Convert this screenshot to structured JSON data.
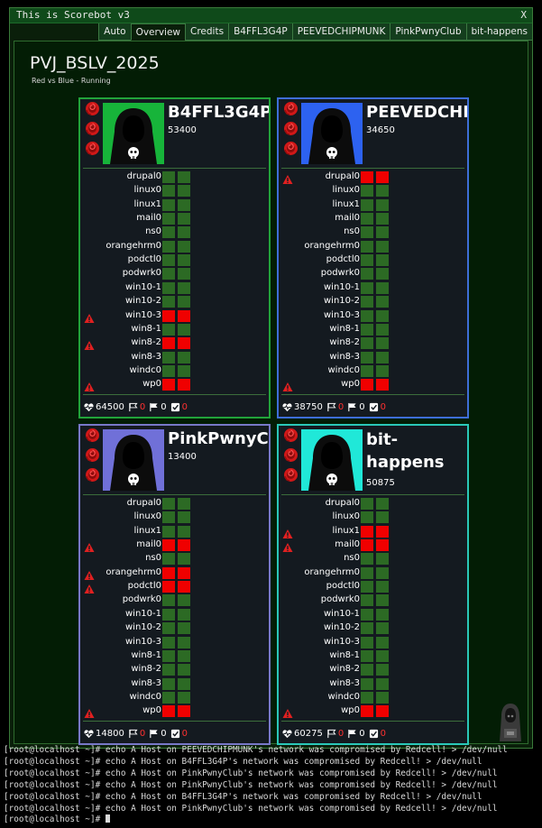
{
  "window": {
    "title": "This is Scorebot v3",
    "close_label": "X",
    "tabs": [
      {
        "label": "Auto",
        "active": false
      },
      {
        "label": "Overview",
        "active": true
      },
      {
        "label": "Credits",
        "active": false
      },
      {
        "label": "B4FFL3G4P",
        "active": false
      },
      {
        "label": "PEEVEDCHIPMUNK",
        "active": false
      },
      {
        "label": "PinkPwnyClub",
        "active": false
      },
      {
        "label": "bit-happens",
        "active": false
      }
    ]
  },
  "game": {
    "title": "PVJ_BSLV_2025",
    "subtitle": "Red vs Blue - Running"
  },
  "teams": [
    {
      "name": "B4FFL3G4P",
      "score": "53400",
      "color": "#22a33a",
      "logo_bg": "#17b43a",
      "wrap": false,
      "services": [
        {
          "name": "drupal0",
          "status": [
            "up",
            "up"
          ]
        },
        {
          "name": "linux0",
          "status": [
            "up",
            "up"
          ]
        },
        {
          "name": "linux1",
          "status": [
            "up",
            "up"
          ]
        },
        {
          "name": "mail0",
          "status": [
            "up",
            "up"
          ]
        },
        {
          "name": "ns0",
          "status": [
            "up",
            "up"
          ]
        },
        {
          "name": "orangehrm0",
          "status": [
            "up",
            "up"
          ]
        },
        {
          "name": "podctl0",
          "status": [
            "up",
            "up"
          ]
        },
        {
          "name": "podwrk0",
          "status": [
            "up",
            "up"
          ]
        },
        {
          "name": "win10-1",
          "status": [
            "up",
            "up"
          ]
        },
        {
          "name": "win10-2",
          "status": [
            "up",
            "up"
          ]
        },
        {
          "name": "win10-3",
          "status": [
            "down",
            "down"
          ]
        },
        {
          "name": "win8-1",
          "status": [
            "up",
            "up"
          ]
        },
        {
          "name": "win8-2",
          "status": [
            "down",
            "down"
          ]
        },
        {
          "name": "win8-3",
          "status": [
            "up",
            "up"
          ]
        },
        {
          "name": "windc0",
          "status": [
            "up",
            "up"
          ]
        },
        {
          "name": "wp0",
          "status": [
            "down",
            "down"
          ]
        }
      ],
      "health": "64500",
      "tickets": "0",
      "flags": "0",
      "beacons": "0"
    },
    {
      "name": "PEEVEDCHIPMUNK",
      "score": "34650",
      "color": "#3e6ed8",
      "logo_bg": "#2d62f0",
      "wrap": false,
      "services": [
        {
          "name": "drupal0",
          "status": [
            "down",
            "down"
          ]
        },
        {
          "name": "linux0",
          "status": [
            "up",
            "up"
          ]
        },
        {
          "name": "linux1",
          "status": [
            "up",
            "up"
          ]
        },
        {
          "name": "mail0",
          "status": [
            "up",
            "up"
          ]
        },
        {
          "name": "ns0",
          "status": [
            "up",
            "up"
          ]
        },
        {
          "name": "orangehrm0",
          "status": [
            "up",
            "up"
          ]
        },
        {
          "name": "podctl0",
          "status": [
            "up",
            "up"
          ]
        },
        {
          "name": "podwrk0",
          "status": [
            "up",
            "up"
          ]
        },
        {
          "name": "win10-1",
          "status": [
            "up",
            "up"
          ]
        },
        {
          "name": "win10-2",
          "status": [
            "up",
            "up"
          ]
        },
        {
          "name": "win10-3",
          "status": [
            "up",
            "up"
          ]
        },
        {
          "name": "win8-1",
          "status": [
            "up",
            "up"
          ]
        },
        {
          "name": "win8-2",
          "status": [
            "up",
            "up"
          ]
        },
        {
          "name": "win8-3",
          "status": [
            "up",
            "up"
          ]
        },
        {
          "name": "windc0",
          "status": [
            "up",
            "up"
          ]
        },
        {
          "name": "wp0",
          "status": [
            "down",
            "down"
          ]
        }
      ],
      "health": "38750",
      "tickets": "0",
      "flags": "0",
      "beacons": "0"
    },
    {
      "name": "PinkPwnyClub",
      "score": "13400",
      "color": "#7878c8",
      "logo_bg": "#7070d8",
      "wrap": false,
      "services": [
        {
          "name": "drupal0",
          "status": [
            "up",
            "up"
          ]
        },
        {
          "name": "linux0",
          "status": [
            "up",
            "up"
          ]
        },
        {
          "name": "linux1",
          "status": [
            "up",
            "up"
          ]
        },
        {
          "name": "mail0",
          "status": [
            "down",
            "down"
          ]
        },
        {
          "name": "ns0",
          "status": [
            "up",
            "up"
          ]
        },
        {
          "name": "orangehrm0",
          "status": [
            "down",
            "down"
          ]
        },
        {
          "name": "podctl0",
          "status": [
            "down",
            "down"
          ]
        },
        {
          "name": "podwrk0",
          "status": [
            "up",
            "up"
          ]
        },
        {
          "name": "win10-1",
          "status": [
            "up",
            "up"
          ]
        },
        {
          "name": "win10-2",
          "status": [
            "up",
            "up"
          ]
        },
        {
          "name": "win10-3",
          "status": [
            "up",
            "up"
          ]
        },
        {
          "name": "win8-1",
          "status": [
            "up",
            "up"
          ]
        },
        {
          "name": "win8-2",
          "status": [
            "up",
            "up"
          ]
        },
        {
          "name": "win8-3",
          "status": [
            "up",
            "up"
          ]
        },
        {
          "name": "windc0",
          "status": [
            "up",
            "up"
          ]
        },
        {
          "name": "wp0",
          "status": [
            "down",
            "down"
          ]
        }
      ],
      "health": "14800",
      "tickets": "0",
      "flags": "0",
      "beacons": "0"
    },
    {
      "name": "bit-happens",
      "score": "50875",
      "color": "#2ac8b8",
      "logo_bg": "#20e8d8",
      "wrap": true,
      "services": [
        {
          "name": "drupal0",
          "status": [
            "up",
            "up"
          ]
        },
        {
          "name": "linux0",
          "status": [
            "up",
            "up"
          ]
        },
        {
          "name": "linux1",
          "status": [
            "down",
            "down"
          ]
        },
        {
          "name": "mail0",
          "status": [
            "down",
            "down"
          ]
        },
        {
          "name": "ns0",
          "status": [
            "up",
            "up"
          ]
        },
        {
          "name": "orangehrm0",
          "status": [
            "up",
            "up"
          ]
        },
        {
          "name": "podctl0",
          "status": [
            "up",
            "up"
          ]
        },
        {
          "name": "podwrk0",
          "status": [
            "up",
            "up"
          ]
        },
        {
          "name": "win10-1",
          "status": [
            "up",
            "up"
          ]
        },
        {
          "name": "win10-2",
          "status": [
            "up",
            "up"
          ]
        },
        {
          "name": "win10-3",
          "status": [
            "up",
            "up"
          ]
        },
        {
          "name": "win8-1",
          "status": [
            "up",
            "up"
          ]
        },
        {
          "name": "win8-2",
          "status": [
            "up",
            "up"
          ]
        },
        {
          "name": "win8-3",
          "status": [
            "up",
            "up"
          ]
        },
        {
          "name": "windc0",
          "status": [
            "up",
            "up"
          ]
        },
        {
          "name": "wp0",
          "status": [
            "down",
            "down"
          ]
        }
      ],
      "health": "60275",
      "tickets": "0",
      "flags": "0",
      "beacons": "0"
    }
  ],
  "terminal": {
    "lines": [
      "[root@localhost ~]# echo A Host on PEEVEDCHIPMUNK's network was compromised by Redcell! > /dev/null",
      "[root@localhost ~]# echo A Host on B4FFL3G4P's network was compromised by Redcell! > /dev/null",
      "[root@localhost ~]# echo A Host on PinkPwnyClub's network was compromised by Redcell! > /dev/null",
      "[root@localhost ~]# echo A Host on PinkPwnyClub's network was compromised by Redcell! > /dev/null",
      "[root@localhost ~]# echo A Host on B4FFL3G4P's network was compromised by Redcell! > /dev/null",
      "[root@localhost ~]# echo A Host on PinkPwnyClub's network was compromised by Redcell! > /dev/null",
      "[root@localhost ~]# "
    ]
  },
  "colors": {
    "service_up": "#2c6a24",
    "service_down": "#f00000",
    "priority_icon": "#d01818",
    "warn_icon": "#e02020"
  },
  "icons": {
    "priority": "rose-icon",
    "warning": "warning-triangle-icon",
    "health": "heart-pulse-icon",
    "tickets": "ticket-flag-icon",
    "flags": "flag-icon",
    "beacons": "checkbox-icon",
    "logo": "hacker-skull-icon",
    "corner": "hooded-hacker-icon"
  }
}
